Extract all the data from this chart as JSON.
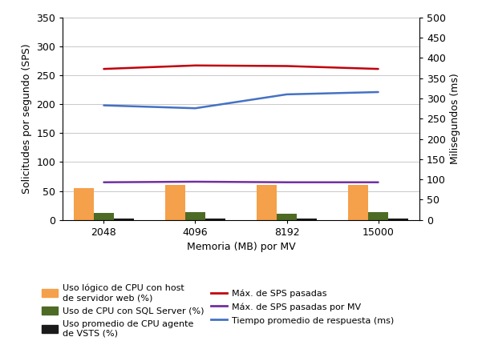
{
  "x_labels": [
    "2048",
    "4096",
    "8192",
    "15000"
  ],
  "x_positions": [
    0,
    1,
    2,
    3
  ],
  "bar_width": 0.22,
  "bar_orange": [
    55,
    61,
    60,
    61
  ],
  "bar_green": [
    12,
    13,
    11,
    13
  ],
  "bar_black": [
    2,
    2,
    2,
    2
  ],
  "line_red": [
    261,
    267,
    266,
    261
  ],
  "line_blue": [
    198,
    193,
    217,
    221
  ],
  "line_purple": [
    65,
    66,
    65,
    65
  ],
  "color_orange": "#F5A04A",
  "color_green": "#4D6B25",
  "color_black": "#1A1A1A",
  "color_red": "#C0000C",
  "color_blue": "#4472C4",
  "color_purple": "#7030A0",
  "ylabel_left": "Solicitudes por segundo (SPS)",
  "ylabel_right": "Milisegundos (ms)",
  "xlabel": "Memoria (MB) por MV",
  "ylim_left": [
    0,
    350
  ],
  "ylim_right": [
    0,
    500
  ],
  "yticks_left": [
    0,
    50,
    100,
    150,
    200,
    250,
    300,
    350
  ],
  "yticks_right": [
    0,
    50,
    100,
    150,
    200,
    250,
    300,
    350,
    400,
    450,
    500
  ],
  "legend_col1": [
    {
      "label": "Uso lógico de CPU con host\nde servidor web (%)",
      "color": "#F5A04A",
      "type": "bar"
    },
    {
      "label": "Uso promedio de CPU agente\nde VSTS (%)",
      "color": "#1A1A1A",
      "type": "bar"
    },
    {
      "label": "Máx. de SPS pasadas por MV",
      "color": "#7030A0",
      "type": "line"
    }
  ],
  "legend_col2": [
    {
      "label": "Uso de CPU con SQL Server (%)",
      "color": "#4D6B25",
      "type": "bar"
    },
    {
      "label": "Máx. de SPS pasadas",
      "color": "#C0000C",
      "type": "line"
    },
    {
      "label": "Tiempo promedio de respuesta (ms)",
      "color": "#4472C4",
      "type": "line"
    }
  ],
  "background_color": "#FFFFFF",
  "grid_color": "#C8C8C8"
}
